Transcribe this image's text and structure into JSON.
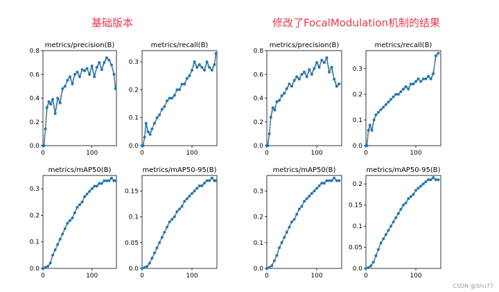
{
  "headings": {
    "left": "基础版本",
    "right": "修改了FocalModulation机制的结果"
  },
  "watermark": "CSDN @Shu77",
  "colors": {
    "heading": "#e8384f",
    "line": "#1f77b4",
    "smooth": "#ff9f1c"
  },
  "chart_data": [
    {
      "type": "line",
      "group": "left",
      "title": "metrics/precision(B)",
      "xlim": [
        0,
        150
      ],
      "ylim": [
        0.0,
        0.8
      ],
      "xticks": [
        0,
        100
      ],
      "yticks": [
        0.0,
        0.2,
        0.4,
        0.6,
        0.8
      ],
      "x": [
        0,
        2,
        5,
        8,
        12,
        16,
        20,
        25,
        30,
        35,
        40,
        45,
        50,
        55,
        60,
        65,
        70,
        75,
        80,
        85,
        90,
        95,
        100,
        105,
        110,
        115,
        120,
        125,
        130,
        135,
        140,
        145,
        148
      ],
      "y": [
        0.0,
        0.0,
        0.14,
        0.32,
        0.37,
        0.35,
        0.39,
        0.27,
        0.4,
        0.36,
        0.48,
        0.5,
        0.55,
        0.58,
        0.52,
        0.6,
        0.62,
        0.58,
        0.64,
        0.63,
        0.65,
        0.6,
        0.67,
        0.58,
        0.66,
        0.7,
        0.64,
        0.7,
        0.74,
        0.72,
        0.68,
        0.6,
        0.48
      ]
    },
    {
      "type": "line",
      "group": "left",
      "title": "metrics/recall(B)",
      "xlim": [
        0,
        150
      ],
      "ylim": [
        0.0,
        0.34
      ],
      "xticks": [
        0,
        100
      ],
      "yticks": [
        0.0,
        0.1,
        0.2,
        0.3
      ],
      "x": [
        0,
        2,
        5,
        8,
        12,
        16,
        20,
        25,
        30,
        35,
        40,
        45,
        50,
        55,
        60,
        65,
        70,
        75,
        80,
        85,
        90,
        95,
        100,
        105,
        110,
        115,
        120,
        125,
        130,
        135,
        140,
        145,
        148
      ],
      "y": [
        0.0,
        0.0,
        0.03,
        0.08,
        0.05,
        0.04,
        0.06,
        0.08,
        0.1,
        0.11,
        0.13,
        0.14,
        0.16,
        0.17,
        0.17,
        0.18,
        0.2,
        0.2,
        0.22,
        0.22,
        0.24,
        0.25,
        0.27,
        0.3,
        0.28,
        0.29,
        0.28,
        0.27,
        0.3,
        0.28,
        0.27,
        0.29,
        0.33
      ]
    },
    {
      "type": "line",
      "group": "left",
      "title": "metrics/mAP50(B)",
      "xlim": [
        0,
        150
      ],
      "ylim": [
        0.0,
        0.35
      ],
      "xticks": [
        0,
        100
      ],
      "yticks": [
        0.0,
        0.1,
        0.2,
        0.3
      ],
      "x": [
        0,
        5,
        10,
        15,
        20,
        25,
        30,
        35,
        40,
        45,
        50,
        55,
        60,
        65,
        70,
        75,
        80,
        85,
        90,
        95,
        100,
        105,
        110,
        115,
        120,
        125,
        130,
        135,
        140,
        145,
        148
      ],
      "y": [
        0.0,
        0.004,
        0.008,
        0.02,
        0.05,
        0.07,
        0.09,
        0.11,
        0.13,
        0.15,
        0.17,
        0.18,
        0.19,
        0.21,
        0.23,
        0.24,
        0.25,
        0.27,
        0.28,
        0.29,
        0.3,
        0.31,
        0.31,
        0.32,
        0.32,
        0.33,
        0.33,
        0.33,
        0.34,
        0.33,
        0.33
      ]
    },
    {
      "type": "line",
      "group": "left",
      "title": "metrics/mAP50-95(B)",
      "xlim": [
        0,
        150
      ],
      "ylim": [
        0.0,
        0.18
      ],
      "xticks": [
        0,
        100
      ],
      "yticks": [
        0.0,
        0.05,
        0.1,
        0.15
      ],
      "x": [
        0,
        5,
        10,
        15,
        20,
        25,
        30,
        35,
        40,
        45,
        50,
        55,
        60,
        65,
        70,
        75,
        80,
        85,
        90,
        95,
        100,
        105,
        110,
        115,
        120,
        125,
        130,
        135,
        140,
        145,
        148
      ],
      "y": [
        0.0,
        0.002,
        0.004,
        0.01,
        0.02,
        0.03,
        0.04,
        0.05,
        0.06,
        0.07,
        0.08,
        0.09,
        0.095,
        0.1,
        0.11,
        0.115,
        0.12,
        0.13,
        0.135,
        0.14,
        0.145,
        0.15,
        0.155,
        0.16,
        0.16,
        0.165,
        0.17,
        0.17,
        0.175,
        0.17,
        0.17
      ]
    },
    {
      "type": "line",
      "group": "right",
      "title": "metrics/precision(B)",
      "xlim": [
        0,
        150
      ],
      "ylim": [
        0.0,
        0.8
      ],
      "xticks": [
        0,
        100
      ],
      "yticks": [
        0.0,
        0.2,
        0.4,
        0.6,
        0.8
      ],
      "x": [
        0,
        2,
        5,
        8,
        12,
        16,
        20,
        25,
        30,
        35,
        40,
        45,
        50,
        55,
        60,
        65,
        70,
        75,
        80,
        85,
        90,
        95,
        100,
        105,
        110,
        115,
        120,
        125,
        130,
        135,
        140,
        145
      ],
      "y": [
        0.0,
        0.0,
        0.1,
        0.24,
        0.32,
        0.3,
        0.37,
        0.38,
        0.42,
        0.44,
        0.48,
        0.52,
        0.5,
        0.55,
        0.58,
        0.56,
        0.6,
        0.62,
        0.58,
        0.64,
        0.6,
        0.65,
        0.7,
        0.66,
        0.72,
        0.7,
        0.74,
        0.62,
        0.66,
        0.56,
        0.5,
        0.52
      ]
    },
    {
      "type": "line",
      "group": "right",
      "title": "metrics/recall(B)",
      "xlim": [
        0,
        150
      ],
      "ylim": [
        0.0,
        0.37
      ],
      "xticks": [
        0,
        100
      ],
      "yticks": [
        0.0,
        0.1,
        0.2,
        0.3
      ],
      "x": [
        0,
        2,
        5,
        8,
        12,
        16,
        20,
        25,
        30,
        35,
        40,
        45,
        50,
        55,
        60,
        65,
        70,
        75,
        80,
        85,
        90,
        95,
        100,
        105,
        110,
        115,
        120,
        125,
        130,
        135,
        140,
        145
      ],
      "y": [
        0.0,
        0.0,
        0.06,
        0.08,
        0.06,
        0.1,
        0.12,
        0.13,
        0.14,
        0.15,
        0.16,
        0.17,
        0.18,
        0.19,
        0.2,
        0.2,
        0.21,
        0.22,
        0.23,
        0.22,
        0.24,
        0.24,
        0.25,
        0.26,
        0.25,
        0.26,
        0.26,
        0.27,
        0.26,
        0.28,
        0.35,
        0.36
      ]
    },
    {
      "type": "line",
      "group": "right",
      "title": "metrics/mAP50(B)",
      "xlim": [
        0,
        150
      ],
      "ylim": [
        0.0,
        0.36
      ],
      "xticks": [
        0,
        100
      ],
      "yticks": [
        0.0,
        0.1,
        0.2,
        0.3
      ],
      "x": [
        0,
        5,
        10,
        15,
        20,
        25,
        30,
        35,
        40,
        45,
        50,
        55,
        60,
        65,
        70,
        75,
        80,
        85,
        90,
        95,
        100,
        105,
        110,
        115,
        120,
        125,
        130,
        135,
        140,
        145
      ],
      "y": [
        0.0,
        0.004,
        0.01,
        0.03,
        0.05,
        0.08,
        0.1,
        0.12,
        0.14,
        0.16,
        0.18,
        0.19,
        0.21,
        0.23,
        0.24,
        0.26,
        0.27,
        0.28,
        0.29,
        0.3,
        0.31,
        0.32,
        0.33,
        0.33,
        0.34,
        0.34,
        0.34,
        0.35,
        0.34,
        0.34
      ]
    },
    {
      "type": "line",
      "group": "right",
      "title": "metrics/mAP50-95(B)",
      "xlim": [
        0,
        150
      ],
      "ylim": [
        0.0,
        0.22
      ],
      "xticks": [
        0,
        100
      ],
      "yticks": [
        0.0,
        0.05,
        0.1,
        0.15,
        0.2
      ],
      "x": [
        0,
        5,
        10,
        15,
        20,
        25,
        30,
        35,
        40,
        45,
        50,
        55,
        60,
        65,
        70,
        75,
        80,
        85,
        90,
        95,
        100,
        105,
        110,
        115,
        120,
        125,
        130,
        135,
        140,
        145
      ],
      "y": [
        0.0,
        0.002,
        0.006,
        0.015,
        0.03,
        0.045,
        0.06,
        0.07,
        0.08,
        0.09,
        0.1,
        0.11,
        0.12,
        0.13,
        0.14,
        0.15,
        0.155,
        0.165,
        0.17,
        0.175,
        0.185,
        0.19,
        0.195,
        0.2,
        0.205,
        0.21,
        0.21,
        0.215,
        0.21,
        0.21
      ]
    }
  ]
}
